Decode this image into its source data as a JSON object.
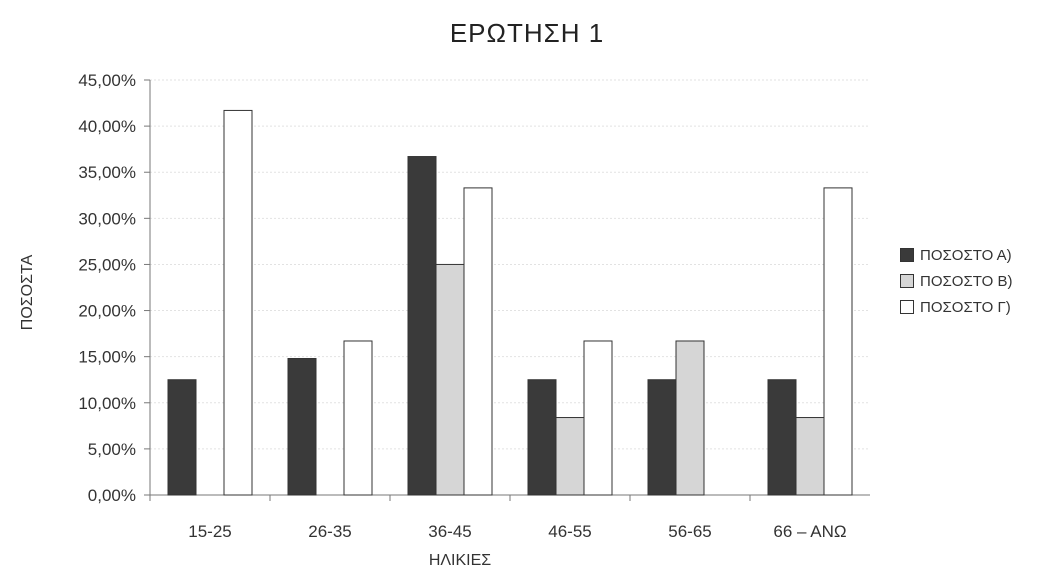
{
  "chart_data": {
    "type": "bar",
    "title": "ΕΡΩΤΗΣΗ 1",
    "xlabel": "ΗΛΙΚΙΕΣ",
    "ylabel": "ΠΟΣΟΣΤΑ",
    "categories": [
      "15-25",
      "26-35",
      "36-45",
      "46-55",
      "56-65",
      "66 – ΑΝΩ"
    ],
    "series": [
      {
        "name": "ΠΟΣΟΣΤΟ Α)",
        "color": "#3a3a3a",
        "values": [
          12.5,
          14.8,
          36.7,
          12.5,
          12.5,
          12.5
        ]
      },
      {
        "name": "ΠΟΣΟΣΤΟ Β)",
        "color": "#d6d6d6",
        "values": [
          0,
          0,
          25.0,
          8.4,
          16.7,
          8.4
        ]
      },
      {
        "name": "ΠΟΣΟΣΤΟ Γ)",
        "color": "#ffffff",
        "values": [
          41.7,
          16.7,
          33.3,
          16.7,
          0,
          33.3
        ]
      }
    ],
    "ylim": [
      0,
      45
    ],
    "yticks": [
      "0,00%",
      "5,00%",
      "10,00%",
      "15,00%",
      "20,00%",
      "25,00%",
      "30,00%",
      "35,00%",
      "40,00%",
      "45,00%"
    ],
    "grid": true,
    "legend_position": "right"
  }
}
